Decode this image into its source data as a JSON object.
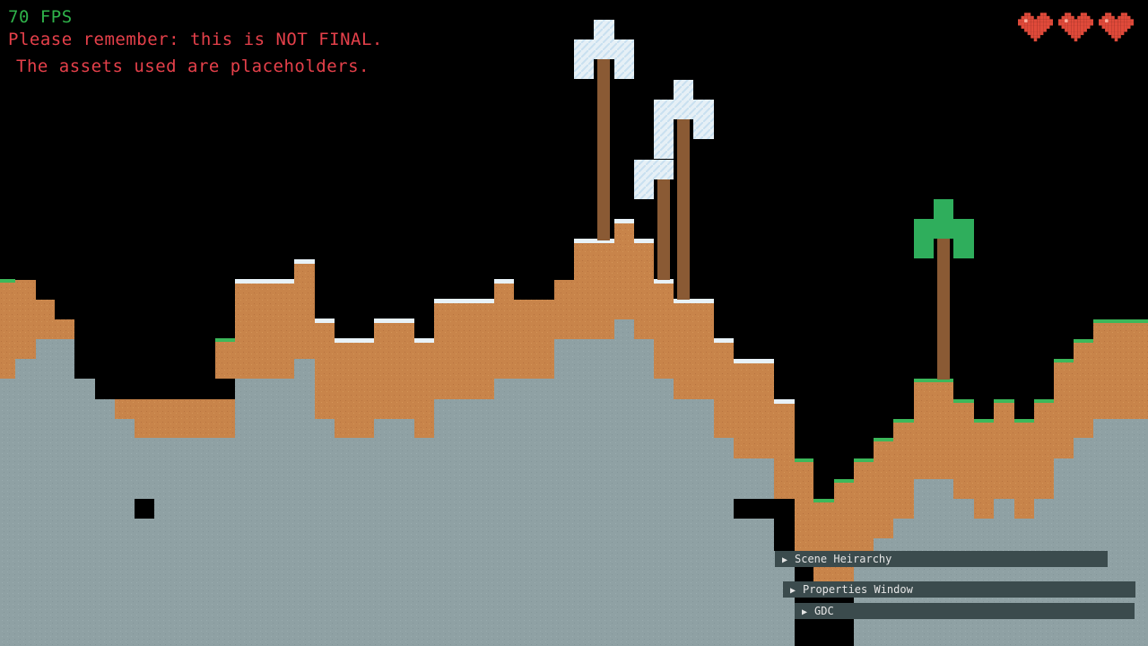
{
  "hud": {
    "fps": "70 FPS",
    "notice_line1": "Please remember: this is NOT FINAL.",
    "notice_line2": "The assets used are placeholders.",
    "fps_color": "#2fb34a",
    "notice_color": "#e5404a"
  },
  "player": {
    "hearts": 3,
    "heart_color": "#e04a3a"
  },
  "colors": {
    "sky": "#000000",
    "dirt": "#c8844a",
    "stone": "#8fa1a4",
    "grass": "#3cb85a",
    "snow": "#e8f2f8",
    "wood": "#8a5a34",
    "leaves_green": "#2fae5c",
    "leaves_snow": "#e6f0f6"
  },
  "debug_panels": {
    "scene_hierarchy": "Scene Heirarchy",
    "properties_window": "Properties Window",
    "gdc": "GDC",
    "arrow_icon": "triangle-right-icon"
  }
}
